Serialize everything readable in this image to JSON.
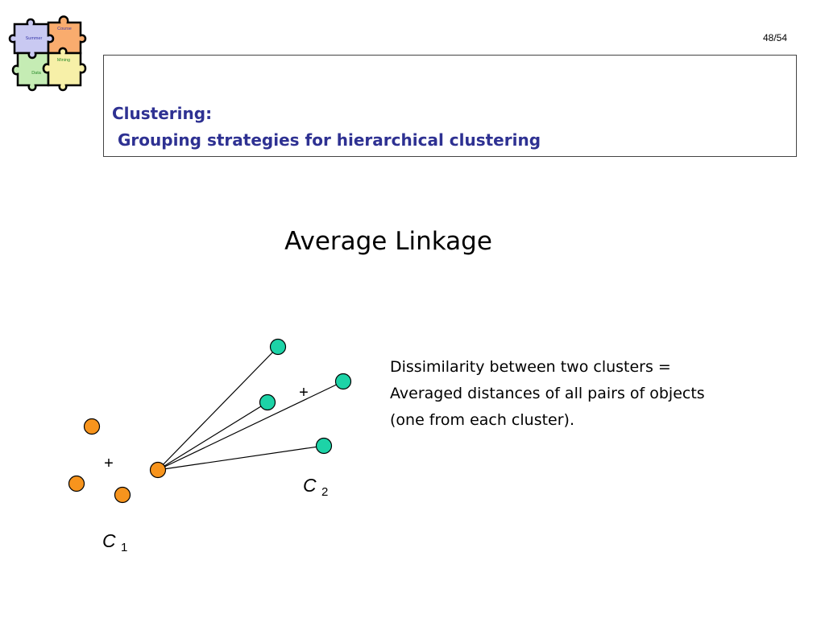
{
  "slide": {
    "page_number": "48/54",
    "title_line1": "Clustering:",
    "title_line2": "Grouping strategies for hierarchical clustering",
    "heading": "Average Linkage"
  },
  "logo": {
    "pieces": [
      "Course",
      "Summer",
      "Mining",
      "Data"
    ]
  },
  "description": {
    "lines": [
      "Dissimilarity between two clusters =",
      "Averaged distances of all pairs of objects",
      "(one from each cluster)."
    ]
  },
  "diagram": {
    "centroid_symbol": "+",
    "cluster1_label": {
      "letter": "C",
      "subscript": "1"
    },
    "cluster2_label": {
      "letter": "C",
      "subscript": "2"
    },
    "colors": {
      "cluster1_fill": "#f7941d",
      "cluster2_fill": "#1dd3a7",
      "title_blue": "#2e3192"
    }
  }
}
